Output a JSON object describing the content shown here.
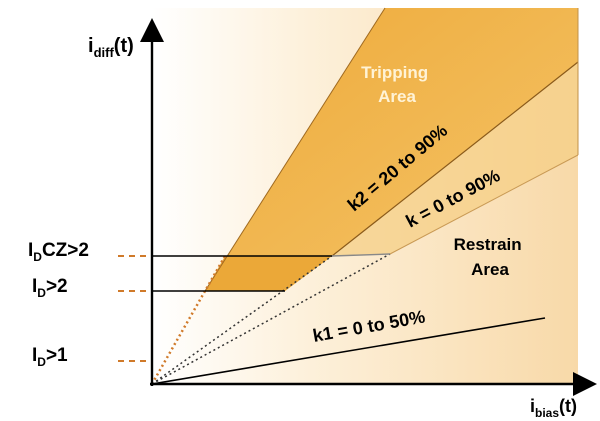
{
  "axes": {
    "y_label_main": "i",
    "y_label_sub": "diff",
    "y_label_tail": "(t)",
    "x_label_main": "i",
    "x_label_sub": "bias",
    "x_label_tail": "(t)"
  },
  "areas": {
    "tripping_line1": "Tripping",
    "tripping_line2": "Area",
    "restrain_line1": "Restrain",
    "restrain_line2": "Area"
  },
  "slopes": {
    "k2": "k2 = 20 to 90%",
    "k": "k = 0 to 90%",
    "k1": "k1 = 0 to 50%"
  },
  "thresholds": {
    "idcz_main": "I",
    "idcz_sub": "D",
    "idcz_tail": "CZ>2",
    "id2_main": "I",
    "id2_sub": "D",
    "id2_tail": ">2",
    "id1_main": "I",
    "id1_sub": "D",
    "id1_tail": ">1"
  },
  "colors": {
    "tripping_fill": "#f0b848",
    "restrain_fill": "#fbe7c6",
    "guide_dash": "#d07a2a",
    "tripping_text": "#fff3d6",
    "axis": "#000000"
  }
}
